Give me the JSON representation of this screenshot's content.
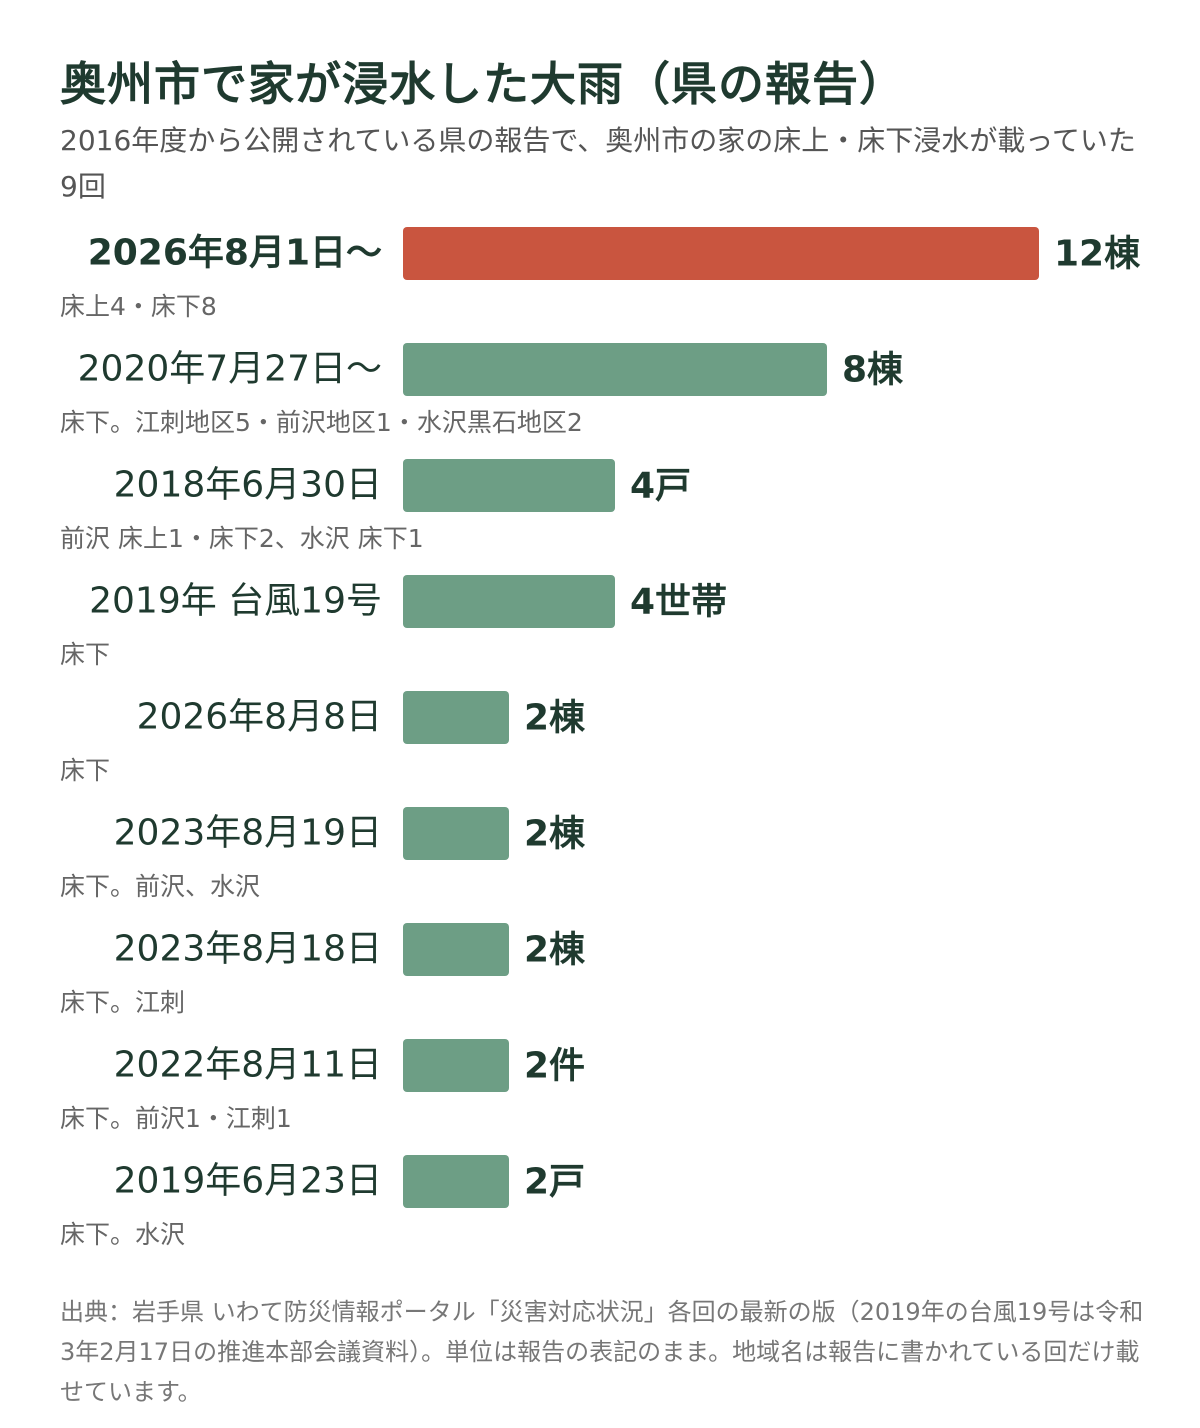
{
  "header": {
    "title": "奥州市で家が浸水した大雨（県の報告）",
    "subtitle": "2016年度から公開されている県の報告で、奥州市の家の床上・床下浸水が載っていた9回"
  },
  "chart_data": {
    "type": "bar",
    "orientation": "horizontal",
    "title": "奥州市で家が浸水した大雨（県の報告）",
    "categories": [
      "2026年8月1日〜",
      "2020年7月27日〜",
      "2018年6月30日",
      "2019年 台風19号",
      "2026年8月8日",
      "2023年8月19日",
      "2023年8月18日",
      "2022年8月11日",
      "2019年6月23日"
    ],
    "values": [
      12,
      8,
      4,
      4,
      2,
      2,
      2,
      2,
      2
    ],
    "value_labels": [
      "12棟",
      "8棟",
      "4戸",
      "4世帯",
      "2棟",
      "2棟",
      "2棟",
      "2件",
      "2戸"
    ],
    "notes": [
      "床上4・床下8",
      "床下。江刺地区5・前沢地区1・水沢黒石地区2",
      "前沢 床上1・床下2、水沢 床下1",
      "床下",
      "床下",
      "床下。前沢、水沢",
      "床下。江刺",
      "床下。前沢1・江刺1",
      "床下。水沢"
    ],
    "highlight_index": 0,
    "xlim": [
      0,
      12
    ],
    "grid": false,
    "legend": "none",
    "colors": {
      "highlight": "#c9553f",
      "bar": "#6d9e85",
      "label": "#1f3a2f",
      "note": "#666666"
    }
  },
  "footer": {
    "source": "出典：岩手県 いわて防災情報ポータル「災害対応状況」各回の最新の版（2019年の台風19号は令和3年2月17日の推進本部会議資料）。単位は報告の表記のまま。地域名は報告に書かれている回だけ載せています。"
  }
}
